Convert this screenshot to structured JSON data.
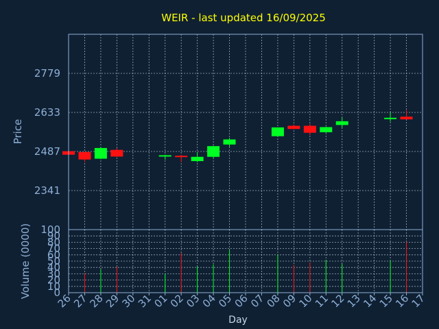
{
  "chart_data": {
    "type": "candlestick",
    "title": "WEIR - last updated 16/09/2025",
    "price_panel": {
      "ylabel": "Price",
      "ylim": [
        2195,
        2925
      ],
      "yticks": [
        2341,
        2487,
        2633,
        2779
      ]
    },
    "volume_panel": {
      "ylabel": "Volume (0000)",
      "ylim": [
        0,
        100
      ],
      "yticks": [
        0,
        10,
        20,
        30,
        40,
        50,
        60,
        70,
        80,
        90,
        100
      ],
      "ytick_labels": [
        "0",
        "10",
        "20",
        "30",
        "40",
        "50",
        "60",
        "70",
        "80",
        "90",
        "100"
      ]
    },
    "xlabel": "Day",
    "x_tick_labels": [
      "26",
      "27",
      "28",
      "29",
      "30",
      "31",
      "01",
      "02",
      "03",
      "04",
      "05",
      "06",
      "07",
      "08",
      "09",
      "10",
      "11",
      "12",
      "13",
      "14",
      "15",
      "16",
      "17"
    ],
    "candles": [
      {
        "day": "26",
        "open": 2488,
        "high": 2490,
        "low": 2475,
        "close": 2475,
        "volume": 0
      },
      {
        "day": "27",
        "open": 2485,
        "high": 2486,
        "low": 2447,
        "close": 2457,
        "volume": 31
      },
      {
        "day": "28",
        "open": 2460,
        "high": 2503,
        "low": 2458,
        "close": 2500,
        "volume": 37
      },
      {
        "day": "29",
        "open": 2493,
        "high": 2500,
        "low": 2466,
        "close": 2468,
        "volume": 41
      },
      {
        "day": "01",
        "open": 2468,
        "high": 2475,
        "low": 2456,
        "close": 2473,
        "volume": 30
      },
      {
        "day": "02",
        "open": 2471,
        "high": 2474,
        "low": 2447,
        "close": 2467,
        "volume": 63
      },
      {
        "day": "03",
        "open": 2451,
        "high": 2485,
        "low": 2447,
        "close": 2467,
        "volume": 42
      },
      {
        "day": "04",
        "open": 2467,
        "high": 2508,
        "low": 2462,
        "close": 2507,
        "volume": 45
      },
      {
        "day": "05",
        "open": 2513,
        "high": 2538,
        "low": 2505,
        "close": 2532,
        "volume": 68
      },
      {
        "day": "08",
        "open": 2544,
        "high": 2577,
        "low": 2543,
        "close": 2577,
        "volume": 60
      },
      {
        "day": "09",
        "open": 2583,
        "high": 2588,
        "low": 2570,
        "close": 2571,
        "volume": 44
      },
      {
        "day": "10",
        "open": 2583,
        "high": 2590,
        "low": 2548,
        "close": 2557,
        "volume": 48
      },
      {
        "day": "11",
        "open": 2559,
        "high": 2580,
        "low": 2557,
        "close": 2578,
        "volume": 52
      },
      {
        "day": "12",
        "open": 2586,
        "high": 2614,
        "low": 2576,
        "close": 2600,
        "volume": 46
      },
      {
        "day": "15",
        "open": 2610,
        "high": 2633,
        "low": 2598,
        "close": 2613,
        "volume": 51
      },
      {
        "day": "16",
        "open": 2617,
        "high": 2642,
        "low": 2607,
        "close": 2607,
        "volume": 81
      }
    ],
    "grid": true,
    "colors": {
      "background": "#0f2033",
      "up": "#00ff22",
      "down": "#ff1111",
      "grid": "#c8d8ea",
      "frame": "#8fb0d6",
      "title": "#ffff00",
      "axis_text": "#8fb0d6"
    }
  }
}
